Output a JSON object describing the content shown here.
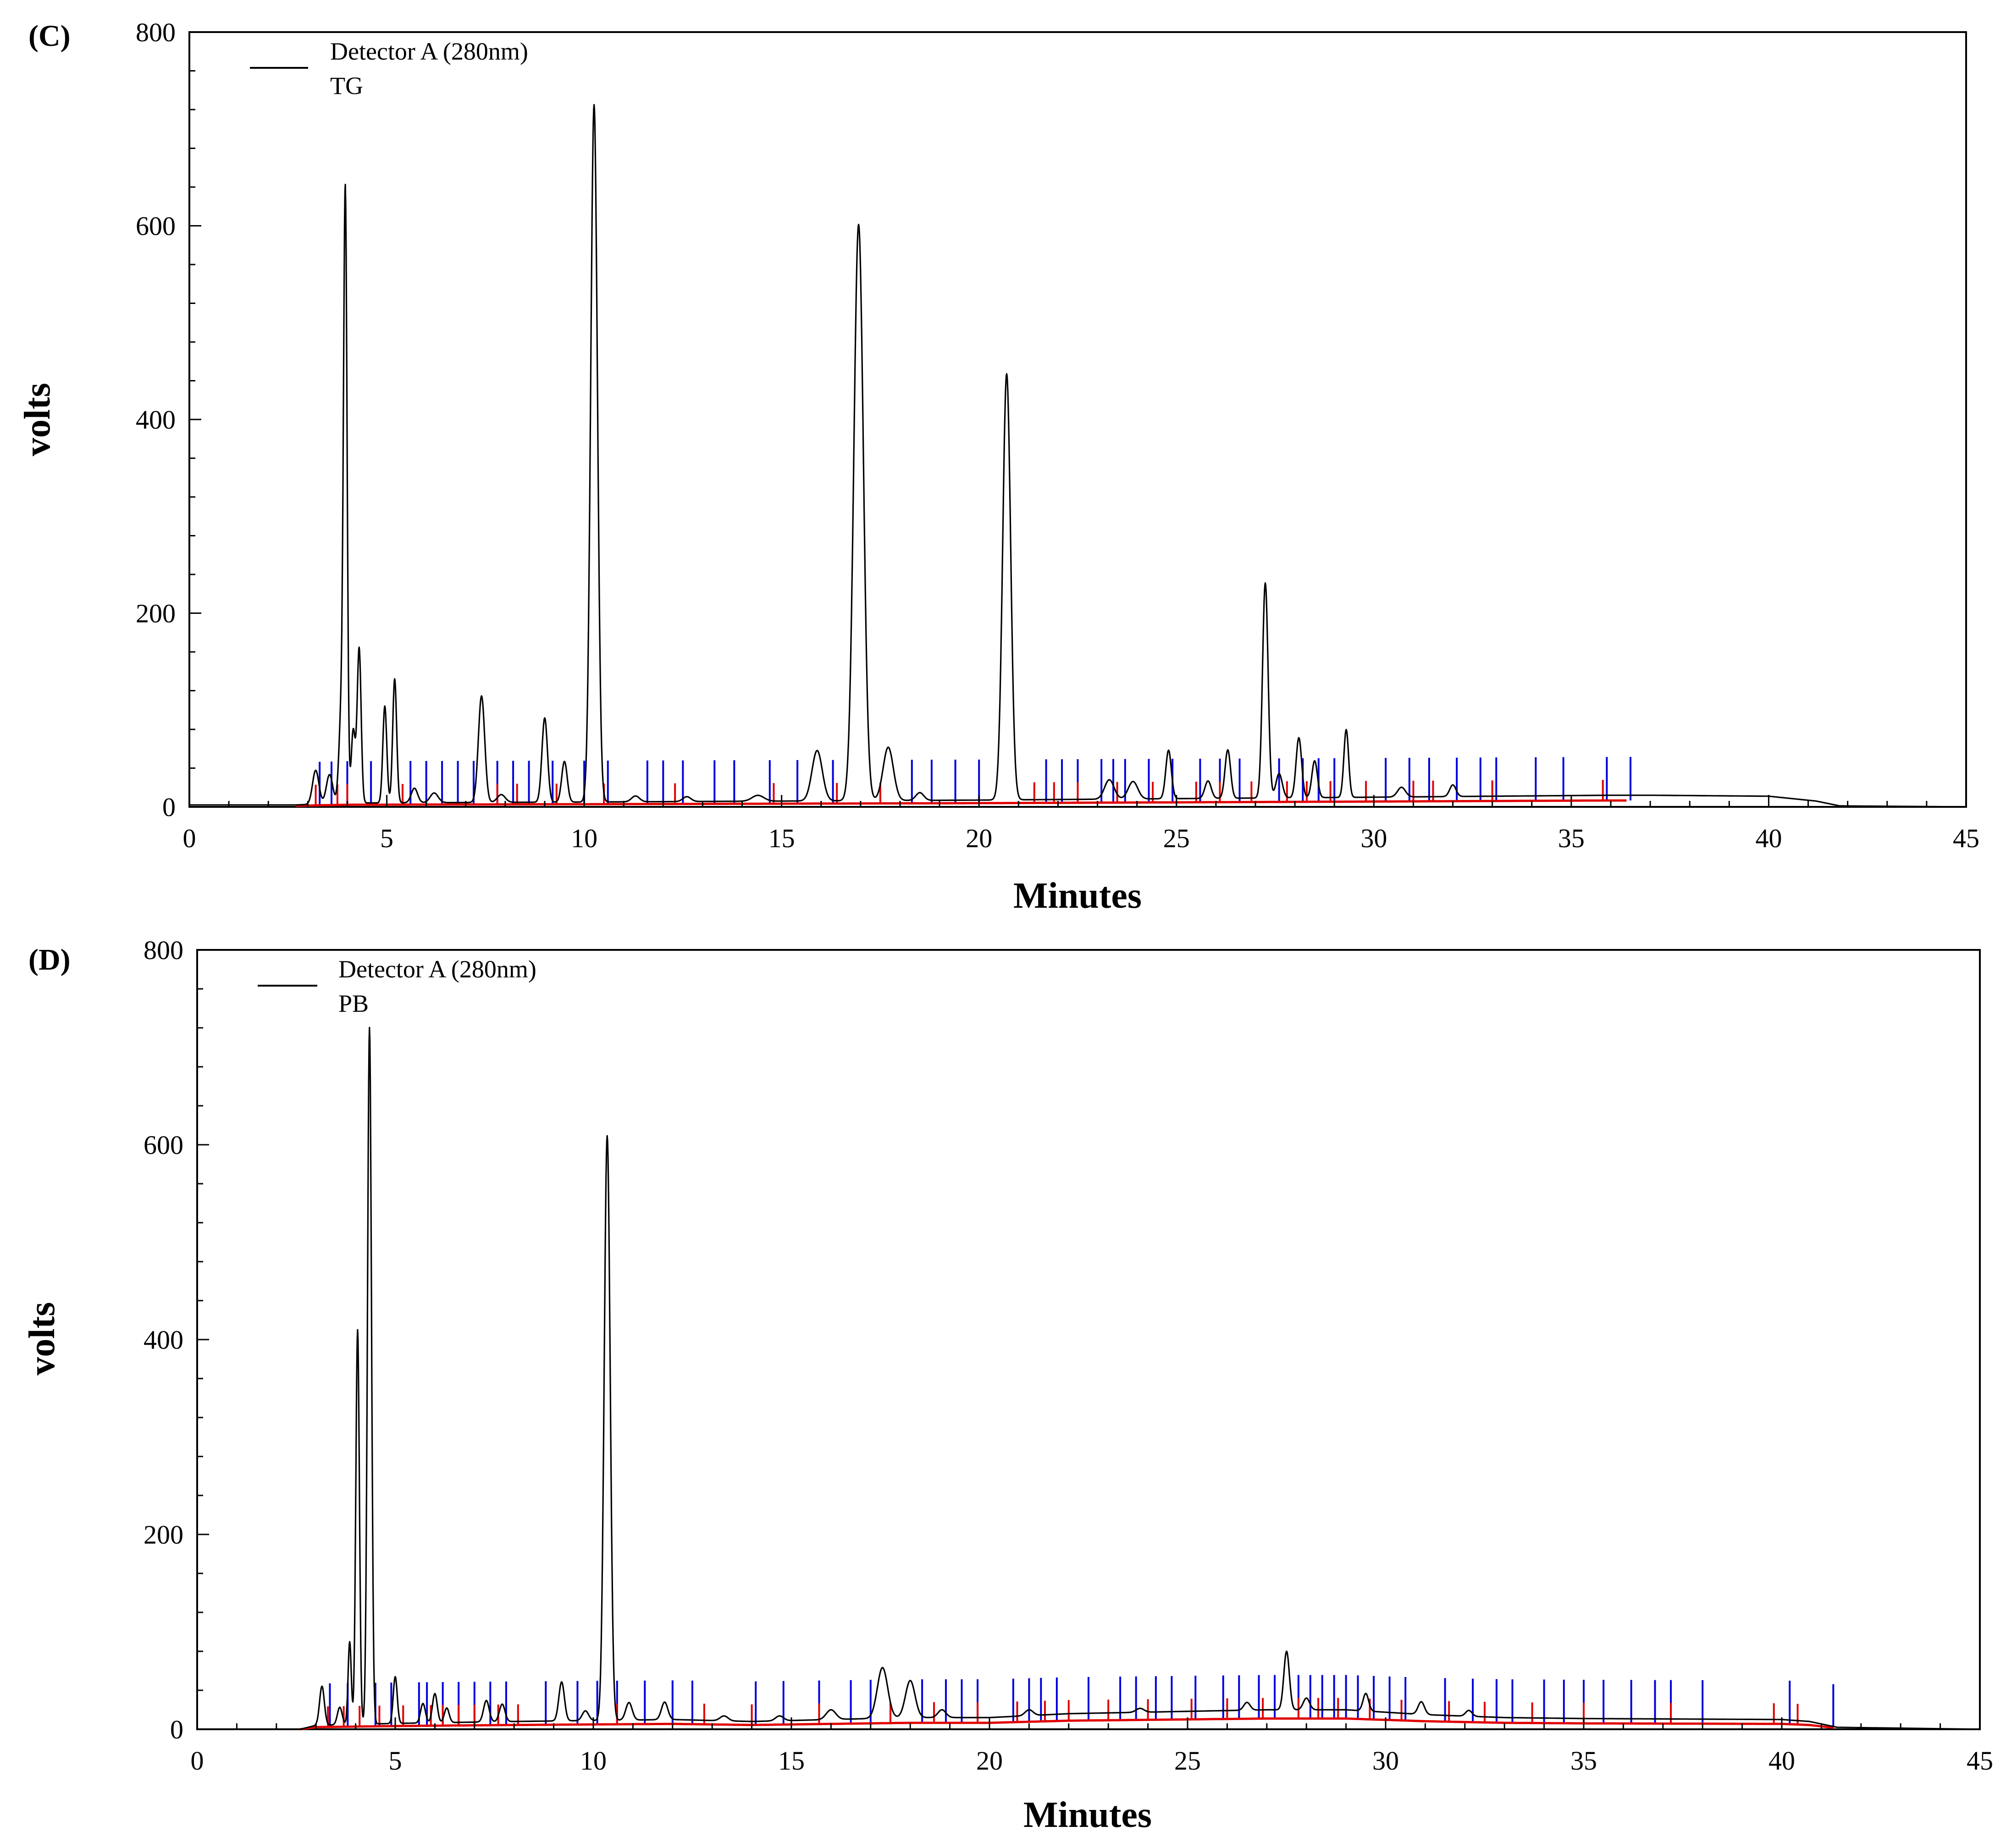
{
  "chart_data": [
    {
      "type": "line",
      "panel_label": "(C)",
      "xlabel": "Minutes",
      "ylabel": "volts",
      "xlim": [
        0,
        45
      ],
      "ylim": [
        0,
        800
      ],
      "x_ticks": [
        "0",
        "5",
        "10",
        "15",
        "20",
        "25",
        "30",
        "35",
        "40",
        "45"
      ],
      "y_ticks": [
        "0",
        "200",
        "400",
        "600",
        "800"
      ],
      "legend": {
        "line1": "Detector A (280nm)",
        "line2": "TG",
        "placement": "top-left"
      },
      "colors": {
        "trace": "#000000",
        "baseline": "#e00000",
        "peak_start_markers": "#e00000",
        "peak_end_markers": "#0000e0"
      },
      "series": [
        {
          "name": "TG",
          "baseline": [
            [
              0,
              2
            ],
            [
              2.7,
              2
            ],
            [
              4,
              4
            ],
            [
              10,
              5
            ],
            [
              20,
              7
            ],
            [
              30,
              10
            ],
            [
              36,
              12
            ],
            [
              37,
              12
            ],
            [
              40,
              11
            ],
            [
              41.2,
              6
            ],
            [
              41.8,
              1
            ],
            [
              45,
              0
            ]
          ],
          "peaks": [
            [
              3.2,
              35,
              0.08
            ],
            [
              3.55,
              30,
              0.08
            ],
            [
              3.85,
              95,
              0.06
            ],
            [
              3.95,
              615,
              0.045
            ],
            [
              4.15,
              75,
              0.05
            ],
            [
              4.3,
              160,
              0.05
            ],
            [
              4.95,
              100,
              0.05
            ],
            [
              5.2,
              128,
              0.05
            ],
            [
              5.7,
              15,
              0.08
            ],
            [
              6.2,
              10,
              0.1
            ],
            [
              7.4,
              110,
              0.08
            ],
            [
              7.9,
              8,
              0.1
            ],
            [
              9.0,
              87,
              0.07
            ],
            [
              9.5,
              42,
              0.07
            ],
            [
              10.25,
              720,
              0.085
            ],
            [
              11.3,
              6,
              0.1
            ],
            [
              12.6,
              5,
              0.1
            ],
            [
              14.4,
              6,
              0.15
            ],
            [
              15.9,
              52,
              0.13
            ],
            [
              16.95,
              595,
              0.12
            ],
            [
              17.7,
              55,
              0.13
            ],
            [
              18.5,
              8,
              0.1
            ],
            [
              20.7,
              440,
              0.1
            ],
            [
              23.3,
              20,
              0.12
            ],
            [
              23.9,
              18,
              0.12
            ],
            [
              24.8,
              50,
              0.07
            ],
            [
              25.8,
              18,
              0.08
            ],
            [
              26.3,
              50,
              0.07
            ],
            [
              27.25,
              222,
              0.07
            ],
            [
              27.6,
              25,
              0.08
            ],
            [
              28.1,
              62,
              0.07
            ],
            [
              28.5,
              38,
              0.07
            ],
            [
              29.3,
              70,
              0.06
            ],
            [
              30.7,
              10,
              0.1
            ],
            [
              32.0,
              12,
              0.08
            ]
          ],
          "peak_start_markers": [
            3.2,
            3.75,
            4.0,
            5.4,
            7.8,
            8.3,
            9.3,
            10.5,
            12.3,
            14.8,
            16.4,
            17.5,
            21.4,
            21.9,
            22.5,
            23.5,
            24.4,
            25.5,
            26.1,
            26.9,
            27.8,
            28.3,
            28.9,
            29.8,
            31.0,
            31.5,
            33.0,
            35.8
          ],
          "peak_end_markers": [
            3.3,
            3.6,
            4.0,
            4.6,
            5.6,
            6.0,
            6.4,
            6.8,
            7.2,
            7.8,
            8.2,
            8.6,
            9.2,
            10.0,
            10.6,
            11.6,
            12.0,
            12.5,
            13.3,
            13.8,
            14.7,
            15.4,
            16.3,
            18.3,
            18.8,
            19.4,
            20.0,
            21.7,
            22.1,
            22.5,
            23.1,
            23.4,
            23.7,
            24.3,
            24.9,
            25.6,
            26.1,
            26.6,
            27.6,
            28.2,
            28.6,
            29.0,
            30.3,
            30.9,
            31.4,
            32.1,
            32.7,
            33.1,
            34.1,
            34.8,
            35.9,
            36.5
          ]
        }
      ]
    },
    {
      "type": "line",
      "panel_label": "(D)",
      "xlabel": "Minutes",
      "ylabel": "volts",
      "xlim": [
        0,
        45
      ],
      "ylim": [
        0,
        800
      ],
      "x_ticks": [
        "0",
        "5",
        "10",
        "15",
        "20",
        "25",
        "30",
        "35",
        "40",
        "45"
      ],
      "y_ticks": [
        "0",
        "200",
        "400",
        "600",
        "800"
      ],
      "legend": {
        "line1": "Detector A (280nm)",
        "line2": "PB",
        "placement": "top-left"
      },
      "colors": {
        "trace": "#000000",
        "baseline": "#e00000",
        "peak_start_markers": "#e00000",
        "peak_end_markers": "#0000e0"
      },
      "series": [
        {
          "name": "PB",
          "baseline": [
            [
              0,
              0
            ],
            [
              2.6,
              0
            ],
            [
              3.0,
              4
            ],
            [
              5,
              6
            ],
            [
              8,
              8
            ],
            [
              12,
              10
            ],
            [
              14,
              8
            ],
            [
              18,
              12
            ],
            [
              20,
              12
            ],
            [
              22,
              16
            ],
            [
              27,
              20
            ],
            [
              29,
              20
            ],
            [
              31,
              15
            ],
            [
              33,
              12
            ],
            [
              35,
              11
            ],
            [
              40,
              10
            ],
            [
              40.7,
              8
            ],
            [
              41.4,
              2
            ],
            [
              45,
              0
            ]
          ],
          "peaks": [
            [
              3.15,
              40,
              0.06
            ],
            [
              3.6,
              18,
              0.06
            ],
            [
              3.85,
              85,
              0.04
            ],
            [
              4.05,
              405,
              0.045
            ],
            [
              4.35,
              715,
              0.05
            ],
            [
              5.0,
              48,
              0.05
            ],
            [
              5.7,
              20,
              0.06
            ],
            [
              6.0,
              30,
              0.06
            ],
            [
              6.3,
              15,
              0.06
            ],
            [
              7.3,
              22,
              0.07
            ],
            [
              7.7,
              18,
              0.07
            ],
            [
              9.2,
              40,
              0.07
            ],
            [
              9.8,
              10,
              0.08
            ],
            [
              10.35,
              600,
              0.075
            ],
            [
              10.9,
              18,
              0.08
            ],
            [
              11.8,
              18,
              0.08
            ],
            [
              13.3,
              5,
              0.1
            ],
            [
              14.7,
              5,
              0.1
            ],
            [
              16.0,
              10,
              0.12
            ],
            [
              17.3,
              52,
              0.13
            ],
            [
              18.0,
              38,
              0.12
            ],
            [
              18.8,
              8,
              0.1
            ],
            [
              21.0,
              6,
              0.1
            ],
            [
              23.8,
              4,
              0.1
            ],
            [
              26.5,
              8,
              0.08
            ],
            [
              27.5,
              60,
              0.07
            ],
            [
              28.0,
              12,
              0.08
            ],
            [
              29.5,
              18,
              0.07
            ],
            [
              30.9,
              13,
              0.08
            ],
            [
              32.1,
              6,
              0.08
            ]
          ],
          "peak_start_markers": [
            3.3,
            3.7,
            4.1,
            4.6,
            5.2,
            5.9,
            6.2,
            6.6,
            7.0,
            7.6,
            8.1,
            10.6,
            12.8,
            14.0,
            15.7,
            17.5,
            18.6,
            19.7,
            20.7,
            21.4,
            22.0,
            23.0,
            24.0,
            25.1,
            26.0,
            26.9,
            27.8,
            28.3,
            28.8,
            29.6,
            30.4,
            31.6,
            32.5,
            33.7,
            35.0,
            37.2,
            39.8,
            40.4
          ],
          "peak_end_markers": [
            3.35,
            3.8,
            4.5,
            4.9,
            5.6,
            5.8,
            6.2,
            6.6,
            7.0,
            7.4,
            7.8,
            8.8,
            9.6,
            10.1,
            10.6,
            11.3,
            12.0,
            12.5,
            14.1,
            14.8,
            15.7,
            16.5,
            17.0,
            18.3,
            18.9,
            19.3,
            19.7,
            20.6,
            21.0,
            21.3,
            21.7,
            22.5,
            23.3,
            23.7,
            24.2,
            24.6,
            25.2,
            25.9,
            26.3,
            26.8,
            27.2,
            27.8,
            28.1,
            28.4,
            28.7,
            29.0,
            29.3,
            29.7,
            30.1,
            30.5,
            31.5,
            32.2,
            32.8,
            33.2,
            34.0,
            34.5,
            35.0,
            35.5,
            36.2,
            36.8,
            37.2,
            38.0,
            40.2,
            41.3
          ]
        }
      ]
    }
  ]
}
